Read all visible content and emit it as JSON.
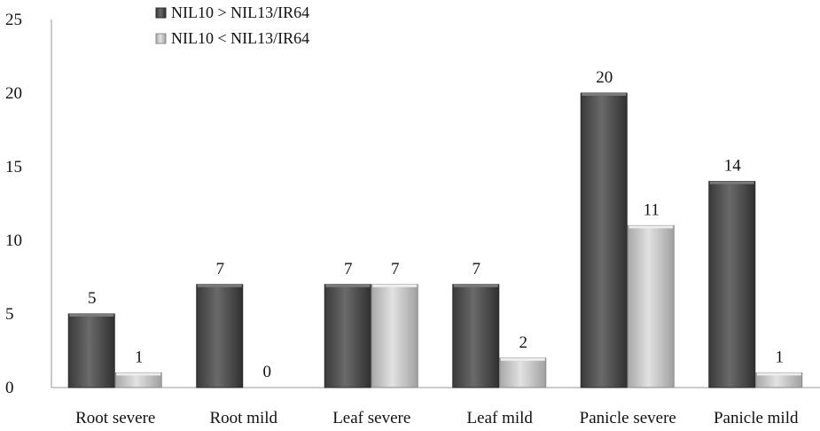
{
  "chart_data": {
    "type": "bar",
    "categories": [
      "Root severe",
      "Root mild",
      "Leaf severe",
      "Leaf mild",
      "Panicle severe",
      "Panicle mild"
    ],
    "series": [
      {
        "name": "NIL10 > NIL13/IR64",
        "values": [
          5,
          7,
          7,
          7,
          20,
          14
        ],
        "color": "#4a4a4a"
      },
      {
        "name": "NIL10 < NIL13/IR64",
        "values": [
          1,
          0,
          7,
          2,
          11,
          1
        ],
        "color": "#c4c4c4"
      }
    ],
    "ylim": [
      0,
      25
    ],
    "yticks": [
      0,
      5,
      10,
      15,
      20,
      25
    ],
    "grid": false,
    "legend_position": "top-left",
    "data_labels": true
  }
}
